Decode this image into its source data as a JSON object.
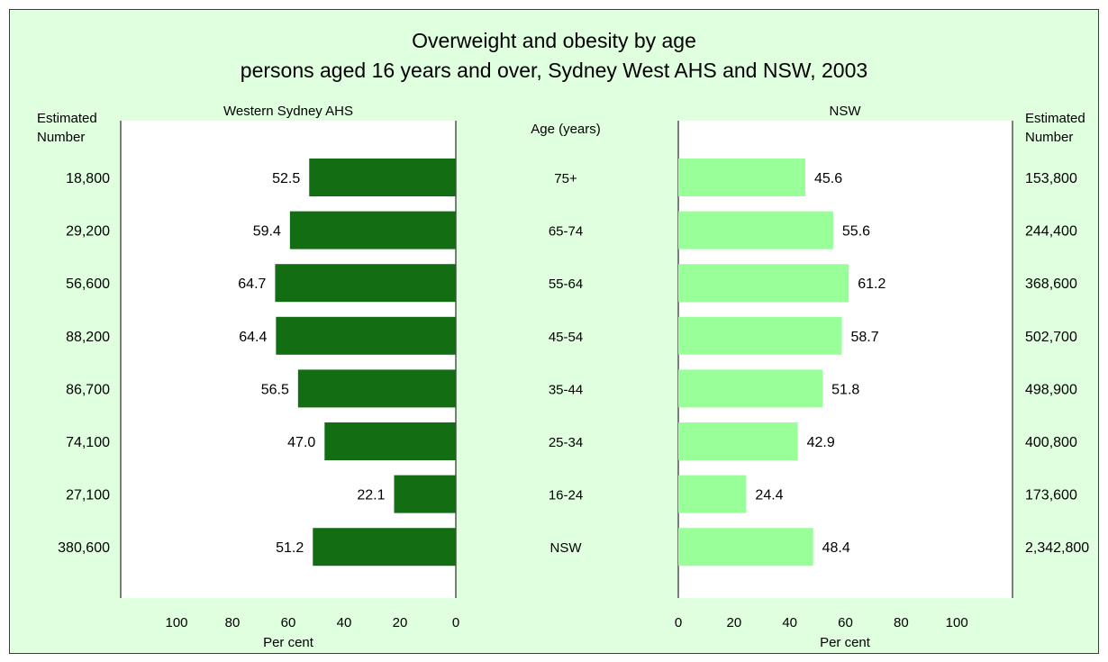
{
  "chart_data": {
    "type": "bar",
    "title": "Overweight and obesity by age",
    "subtitle": "persons aged 16 years and over, Sydney West AHS and NSW, 2003",
    "center_header": "Age (years)",
    "categories": [
      "75+",
      "65-74",
      "55-64",
      "45-54",
      "35-44",
      "25-34",
      "16-24",
      "NSW"
    ],
    "estimated_label_line1": "Estimated",
    "estimated_label_line2": "Number",
    "panels": [
      {
        "name": "Western Sydney AHS",
        "direction": "left",
        "values": [
          52.5,
          59.4,
          64.7,
          64.4,
          56.5,
          47.0,
          22.1,
          51.2
        ],
        "value_labels": [
          "52.5",
          "59.4",
          "64.7",
          "64.4",
          "56.5",
          "47.0",
          "22.1",
          "51.2"
        ],
        "estimated_numbers": [
          "18,800",
          "29,200",
          "56,600",
          "88,200",
          "86,700",
          "74,100",
          "27,100",
          "380,600"
        ],
        "xlabel": "Per cent",
        "xlim": [
          0,
          120
        ],
        "ticks": [
          100,
          80,
          60,
          40,
          20,
          0
        ],
        "color": "#136e13"
      },
      {
        "name": "NSW",
        "direction": "right",
        "values": [
          45.6,
          55.6,
          61.2,
          58.7,
          51.8,
          42.9,
          24.4,
          48.4
        ],
        "value_labels": [
          "45.6",
          "55.6",
          "61.2",
          "58.7",
          "51.8",
          "42.9",
          "24.4",
          "48.4"
        ],
        "estimated_numbers": [
          "153,800",
          "244,400",
          "368,600",
          "502,700",
          "498,900",
          "400,800",
          "173,600",
          "2,342,800"
        ],
        "xlabel": "Per cent",
        "xlim": [
          0,
          120
        ],
        "ticks": [
          0,
          20,
          40,
          60,
          80,
          100
        ],
        "color": "#99ff99"
      }
    ],
    "grid": false,
    "legend": "none"
  },
  "colors": {
    "background": "#dfffdf",
    "plot_area": "#ffffff",
    "axis": "#000000"
  }
}
